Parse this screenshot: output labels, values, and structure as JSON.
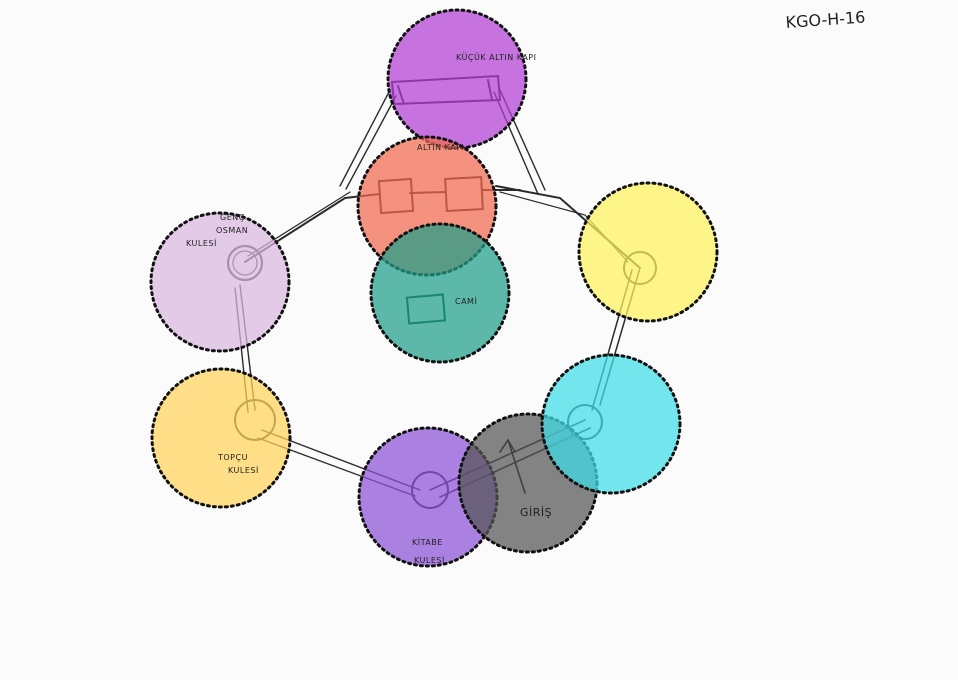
{
  "sheet_code": "KGO-H-16",
  "colors": {
    "paper": "#fbfbfb",
    "pencil": "#2b2b2b",
    "dotted_border": "#111111"
  },
  "labels": {
    "kucuk_altin_kapi": "KÜÇÜK ALTIN KAPI",
    "altin_kapi": "ALTIN KAPI",
    "cami": "CAMİ",
    "genc_osman_line1": "GENÇ",
    "genc_osman_line2": "OSMAN",
    "genc_osman_line3": "KULESİ",
    "topcu_line1": "TOPÇU",
    "topcu_line2": "KULESİ",
    "kitabe_line1": "KİTABE",
    "kitabe_line2": "KULESİ",
    "giris": "GİRİŞ"
  },
  "zones": [
    {
      "name": "kucuk-altin-kapi",
      "color": "#b23fd6"
    },
    {
      "name": "altin-kapi",
      "color": "#f26a4f"
    },
    {
      "name": "cami",
      "color": "#1e9e88"
    },
    {
      "name": "genc-osman-kulesi",
      "color": "#d9b8e0"
    },
    {
      "name": "east-tower",
      "color": "#fff35c"
    },
    {
      "name": "topcu-kulesi",
      "color": "#ffd25a"
    },
    {
      "name": "kitabe-kulesi",
      "color": "#8a52d6"
    },
    {
      "name": "giris",
      "color": "#555555"
    },
    {
      "name": "south-east-tower",
      "color": "#3fdde6"
    }
  ]
}
